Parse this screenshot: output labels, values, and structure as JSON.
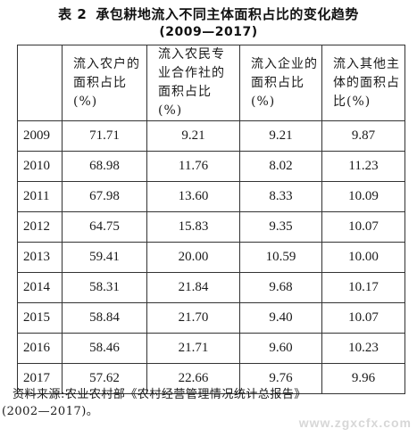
{
  "title": {
    "table_no": "表 2",
    "text": "承包耕地流入不同主体面积占比的变化趋势",
    "range": "(2009—2017)"
  },
  "table": {
    "headers": [
      "",
      "流入农户的面积占比(%)",
      "流入农民专业合作社的面积占比(%)",
      "流入企业的面积占比(%)",
      "流入其他主体的面积占比(%)"
    ],
    "rows": [
      [
        "2009",
        "71.71",
        "9.21",
        "9.21",
        "9.87"
      ],
      [
        "2010",
        "68.98",
        "11.76",
        "8.02",
        "11.23"
      ],
      [
        "2011",
        "67.98",
        "13.60",
        "8.33",
        "10.09"
      ],
      [
        "2012",
        "64.75",
        "15.83",
        "9.35",
        "10.07"
      ],
      [
        "2013",
        "59.41",
        "20.00",
        "10.59",
        "10.00"
      ],
      [
        "2014",
        "58.31",
        "21.84",
        "9.68",
        "10.17"
      ],
      [
        "2015",
        "58.84",
        "21.70",
        "9.40",
        "10.07"
      ],
      [
        "2016",
        "58.46",
        "21.71",
        "9.60",
        "10.23"
      ],
      [
        "2017",
        "57.62",
        "22.66",
        "9.76",
        "9.96"
      ]
    ]
  },
  "source": {
    "line1": "资料来源:农业农村部《农村经营管理情况统计总报告》",
    "line2": "(2002—2017)。"
  },
  "watermark": "www.zgxcfx.com"
}
